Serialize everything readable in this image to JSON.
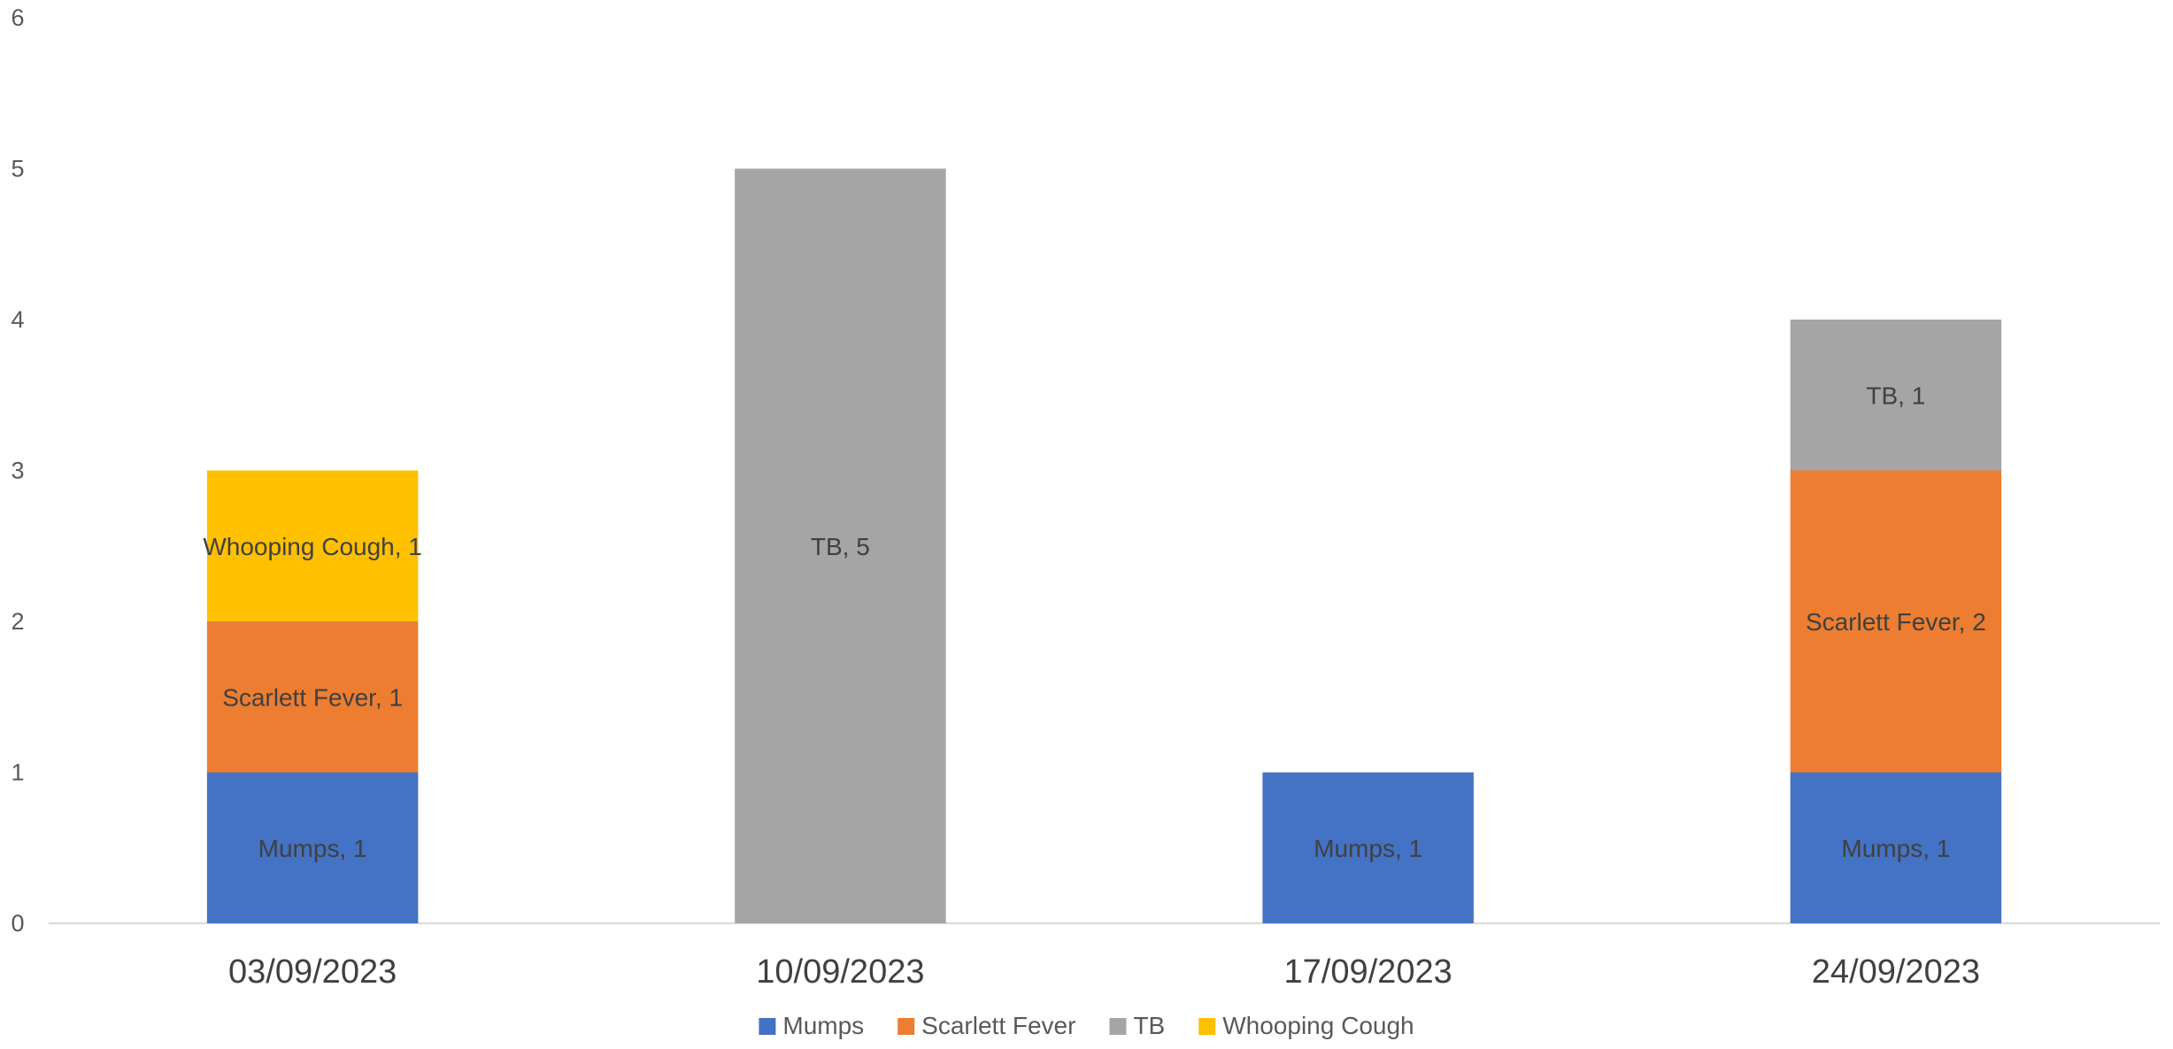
{
  "chart_data": {
    "type": "bar",
    "stacked": true,
    "categories": [
      "03/09/2023",
      "10/09/2023",
      "17/09/2023",
      "24/09/2023"
    ],
    "series": [
      {
        "name": "Mumps",
        "color": "#4472C4",
        "values": [
          1,
          0,
          1,
          1
        ]
      },
      {
        "name": "Scarlett Fever",
        "color": "#ED7D31",
        "values": [
          1,
          0,
          0,
          2
        ]
      },
      {
        "name": "TB",
        "color": "#A5A5A5",
        "values": [
          0,
          5,
          0,
          1
        ]
      },
      {
        "name": "Whooping Cough",
        "color": "#FFC000",
        "values": [
          1,
          0,
          0,
          0
        ]
      }
    ],
    "ylim": [
      0,
      6
    ],
    "yticks": [
      0,
      1,
      2,
      3,
      4,
      5,
      6
    ],
    "data_labels": "series name, value",
    "grid": false,
    "legend_position": "bottom"
  }
}
